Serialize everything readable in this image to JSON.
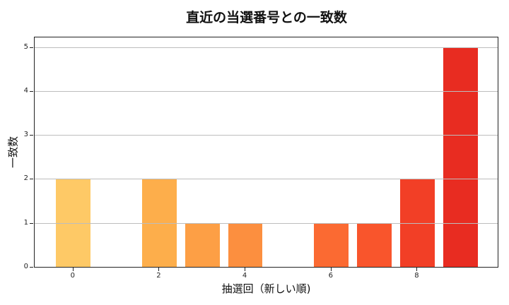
{
  "chart_data": {
    "type": "bar",
    "title": "直近の当選番号との一致数",
    "xlabel": "抽選回（新しい順)",
    "ylabel": "一致数",
    "categories": [
      0,
      1,
      2,
      3,
      4,
      5,
      6,
      7,
      8,
      9
    ],
    "values": [
      2,
      0,
      2,
      1,
      1,
      0,
      1,
      1,
      2,
      5
    ],
    "colors": [
      "#fec966",
      "#fec05f",
      "#fdae4b",
      "#fd9f45",
      "#fc8f3f",
      "#fc7a37",
      "#fb6a32",
      "#f9552c",
      "#f23f26",
      "#e82c21"
    ],
    "xticks": [
      0,
      2,
      4,
      6,
      8
    ],
    "yticks": [
      0,
      1,
      2,
      3,
      4,
      5
    ],
    "xlim": [
      -0.9,
      9.9
    ],
    "ylim": [
      0,
      5.25
    ],
    "grid": "y",
    "legend": "none"
  }
}
